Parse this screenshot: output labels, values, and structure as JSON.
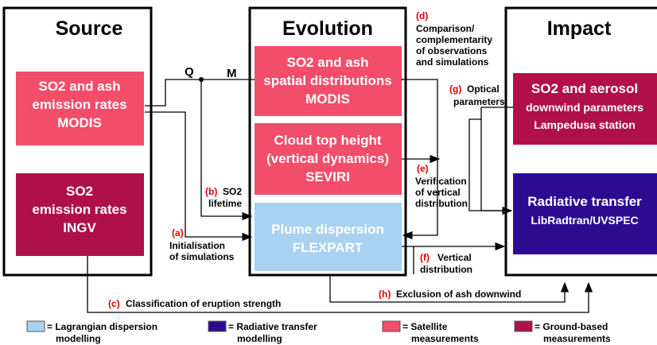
{
  "columns": [
    {
      "title": "Source"
    },
    {
      "title": "Evolution"
    },
    {
      "title": "Impact"
    }
  ],
  "boxes": [
    {
      "lines": [
        "SO2 and ash",
        "emission rates",
        "MODIS"
      ]
    },
    {
      "lines": [
        "SO2",
        "emission rates",
        "INGV"
      ]
    },
    {
      "lines": [
        "SO2 and ash",
        "spatial distributions",
        "MODIS"
      ]
    },
    {
      "lines": [
        "Cloud top height",
        "(vertical dynamics)",
        "SEVIRI"
      ]
    },
    {
      "lines": [
        "Plume dispersion",
        "FLEXPART"
      ]
    },
    {
      "lines": [
        "SO2 and aerosol",
        "downwind parameters",
        "Lampedusa station"
      ]
    },
    {
      "lines": [
        "Radiative transfer",
        "LibRadtran/UVSPEC"
      ]
    }
  ],
  "labels": {
    "q": "Q",
    "m": "M"
  },
  "annotations": [
    {
      "letter": "(a)",
      "lines": [
        "Initialisation",
        "of simulations"
      ]
    },
    {
      "letter": "(b)",
      "lines": [
        "SO2",
        "lifetime"
      ]
    },
    {
      "letter": "(c)",
      "lines": [
        "Classification of eruption strength"
      ]
    },
    {
      "letter": "(d)",
      "lines": [
        "Comparison/",
        "complementarity",
        "of observations",
        "and simulations"
      ]
    },
    {
      "letter": "(e)",
      "lines": [
        "Verification",
        "of vertical",
        "distribution"
      ]
    },
    {
      "letter": "(f)",
      "lines": [
        "Vertical",
        "distribution"
      ]
    },
    {
      "letter": "(g)",
      "lines": [
        "Optical",
        "parameters"
      ]
    },
    {
      "letter": "(h)",
      "lines": [
        "Exclusion of ash downwind"
      ]
    }
  ],
  "legend": [
    {
      "lines": [
        "= Lagrangian dispersion",
        "modelling"
      ]
    },
    {
      "lines": [
        "= Radiative transfer",
        "modelling"
      ]
    },
    {
      "lines": [
        "= Satellite",
        "measurements"
      ]
    },
    {
      "lines": [
        "= Ground-based",
        "measurements"
      ]
    }
  ]
}
